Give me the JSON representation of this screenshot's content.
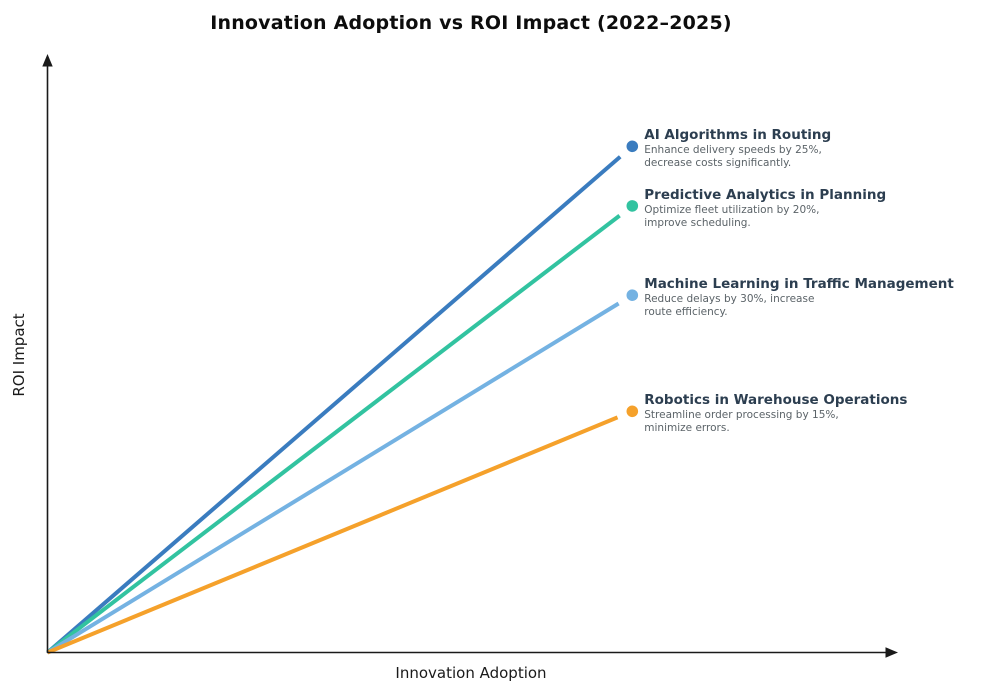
{
  "title": "Innovation Adoption vs ROI Impact (2022–2025)",
  "chart_data": {
    "type": "line",
    "title": "Innovation Adoption vs ROI Impact (2022–2025)",
    "xlabel": "Innovation Adoption",
    "ylabel": "ROI Impact",
    "x_range": [
      0,
      1
    ],
    "y_range": [
      0,
      1
    ],
    "ticks": "none",
    "grid": false,
    "legend_position": "none (direct annotations at line ends)",
    "axis_style": "arrow-ended spines, no tick labels",
    "axis_color": "#1a1a1a",
    "annotation_title_color": "#2c3e50",
    "annotation_desc_color": "#5b6368",
    "series": [
      {
        "name": "AI Algorithms in Routing",
        "color": "#3a7cbf",
        "x": [
          0,
          0.69
        ],
        "y": [
          0,
          0.85
        ],
        "marker": "circle-end",
        "annotation": "Enhance delivery speeds by 25%, decrease costs significantly.",
        "desc_lines": [
          "Enhance delivery speeds by 25%,",
          "decrease costs significantly."
        ]
      },
      {
        "name": "Predictive Analytics in Planning",
        "color": "#32c3a0",
        "x": [
          0,
          0.69
        ],
        "y": [
          0,
          0.75
        ],
        "marker": "circle-end",
        "annotation": "Optimize fleet utilization by 20%, improve scheduling.",
        "desc_lines": [
          "Optimize fleet utilization by 20%,",
          "improve scheduling."
        ]
      },
      {
        "name": "Machine Learning in Traffic Management",
        "color": "#74b2e2",
        "x": [
          0,
          0.69
        ],
        "y": [
          0,
          0.6
        ],
        "marker": "circle-end",
        "annotation": "Reduce delays by 30%, increase route efficiency.",
        "desc_lines": [
          "Reduce delays by 30%, increase",
          "route efficiency."
        ]
      },
      {
        "name": "Robotics in Warehouse Operations",
        "color": "#f5a12b",
        "x": [
          0,
          0.69
        ],
        "y": [
          0,
          0.405
        ],
        "marker": "circle-end",
        "annotation": "Streamline order processing by 15%, minimize errors.",
        "desc_lines": [
          "Streamline order processing by 15%,",
          "minimize errors."
        ]
      }
    ]
  }
}
